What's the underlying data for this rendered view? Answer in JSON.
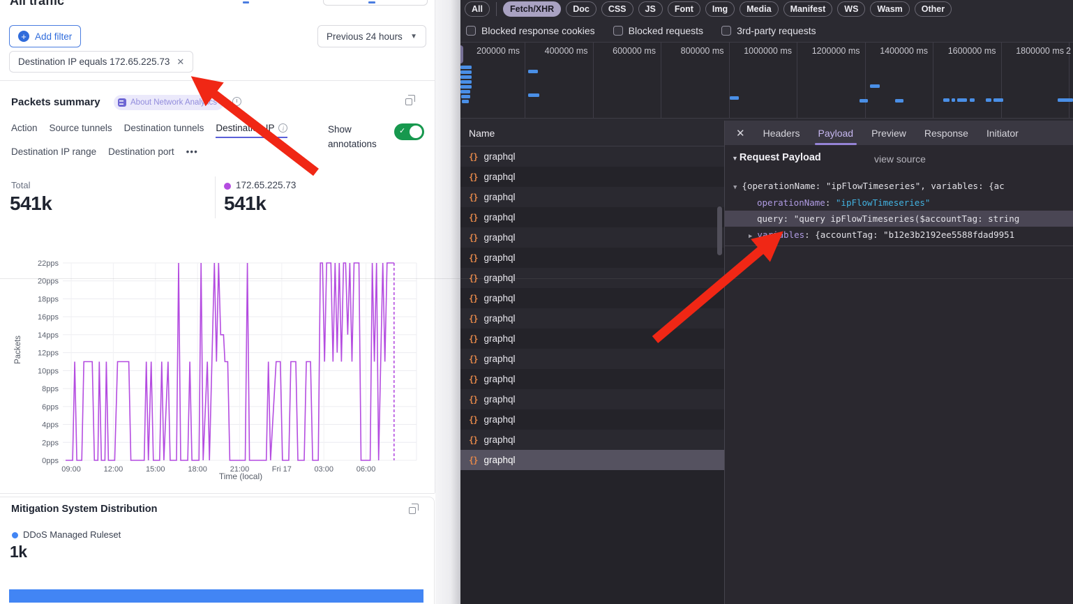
{
  "colors": {
    "series_purple": "#b44ce0",
    "mitigation_blue": "#4285f4",
    "toggle_green": "#17984e",
    "arrow_red": "#f02715",
    "waterfall_blue": "#4a8fe6",
    "accent_blue": "#2f6bdb",
    "devtools_pill_active_bg": "#a9a2c2",
    "payload_key_purple": "#af9be2",
    "payload_string_cyan": "#42b2e0",
    "active_tab_underline": "#5a5fd8"
  },
  "left": {
    "title": "All traffic",
    "add_filter": "Add filter",
    "time_range": "Previous 24 hours",
    "filter_chip": "Destination IP equals 172.65.225.73",
    "packets": {
      "title": "Packets summary",
      "badge": "About Network Analytics",
      "tabs_row1": [
        "Action",
        "Source tunnels",
        "Destination tunnels",
        "Destination IP"
      ],
      "active_tab": "Destination IP",
      "tabs_row2": [
        "Destination IP range",
        "Destination port"
      ],
      "more_glyph": "•••",
      "show_annotations": "Show annotations",
      "total_label": "Total",
      "total_value": "541k",
      "series_label": "172.65.225.73",
      "series_value": "541k"
    },
    "mitigation": {
      "title": "Mitigation System Distribution",
      "legend": "DDoS Managed Ruleset",
      "value": "1k"
    }
  },
  "devtools": {
    "filter_pills": [
      "All",
      "Fetch/XHR",
      "Doc",
      "CSS",
      "JS",
      "Font",
      "Img",
      "Media",
      "Manifest",
      "WS",
      "Wasm",
      "Other"
    ],
    "active_pill": "Fetch/XHR",
    "checkbox_labels": [
      "Blocked response cookies",
      "Blocked requests",
      "3rd-party requests"
    ],
    "timeline": {
      "tick_labels": [
        "200000 ms",
        "400000 ms",
        "600000 ms",
        "800000 ms",
        "1000000 ms",
        "1200000 ms",
        "1400000 ms",
        "1600000 ms",
        "1800000 ms"
      ],
      "partial_tick": "2",
      "bars": [
        [
          660,
          93,
          16
        ],
        [
          660,
          100,
          16
        ],
        [
          660,
          107,
          16
        ],
        [
          660,
          114,
          16
        ],
        [
          660,
          121,
          16
        ],
        [
          660,
          128,
          14
        ],
        [
          661,
          135,
          13
        ],
        [
          662,
          142,
          10
        ],
        [
          757,
          99,
          14
        ],
        [
          757,
          133,
          16
        ],
        [
          1046,
          137,
          13
        ],
        [
          1247,
          120,
          14
        ],
        [
          1232,
          141,
          12
        ],
        [
          1283,
          141,
          12
        ],
        [
          1352,
          140,
          9
        ],
        [
          1364,
          140,
          5
        ],
        [
          1372,
          140,
          14
        ],
        [
          1390,
          140,
          7
        ],
        [
          1413,
          140,
          8
        ],
        [
          1424,
          140,
          14
        ],
        [
          1516,
          140,
          22
        ]
      ]
    },
    "name_header": "Name",
    "request_icon": "{}",
    "requests": [
      "graphql",
      "graphql",
      "graphql",
      "graphql",
      "graphql",
      "graphql",
      "graphql",
      "graphql",
      "graphql",
      "graphql",
      "graphql",
      "graphql",
      "graphql",
      "graphql",
      "graphql",
      "graphql"
    ],
    "selected_request_index": 15,
    "panel": {
      "close_glyph": "✕",
      "tabs": [
        "Headers",
        "Payload",
        "Preview",
        "Response",
        "Initiator"
      ],
      "active_tab": "Payload",
      "section_title": "Request Payload",
      "view_source": "view source",
      "preview_line": "{operationName: \"ipFlowTimeseries\", variables: {ac",
      "rows": [
        {
          "key": "operationName",
          "value": "\"ipFlowTimeseries\"",
          "value_style": "cyan",
          "key_style": "purple"
        },
        {
          "key": "query",
          "value": "\"query ipFlowTimeseries($accountTag: string",
          "value_style": "plain",
          "key_style": "plain",
          "highlight": true
        },
        {
          "key": "variables",
          "value": "{accountTag: \"b12e3b2192ee5588fdad9951",
          "value_style": "plain",
          "key_style": "purple",
          "expandable": true
        }
      ]
    }
  },
  "chart_data": [
    {
      "type": "line",
      "title": "Packets summary",
      "ylabel": "Packets",
      "xlabel": "Time (local)",
      "ylim": [
        0,
        22
      ],
      "y_tick_step": 2,
      "y_unit": "pps",
      "x_domain": [
        8.4,
        33.6
      ],
      "grid": true,
      "dashed_end": true,
      "x_ticks": [
        {
          "label": "09:00",
          "t": 9
        },
        {
          "label": "12:00",
          "t": 12
        },
        {
          "label": "15:00",
          "t": 15
        },
        {
          "label": "18:00",
          "t": 18
        },
        {
          "label": "21:00",
          "t": 21
        },
        {
          "label": "Fri 17",
          "t": 24
        },
        {
          "label": "03:00",
          "t": 27
        },
        {
          "label": "06:00",
          "t": 30
        }
      ],
      "series": [
        {
          "name": "172.65.225.73",
          "total": "541k",
          "color": "#b44ce0",
          "points": [
            [
              8.6,
              0
            ],
            [
              9.1,
              0
            ],
            [
              9.25,
              11
            ],
            [
              9.4,
              0
            ],
            [
              9.75,
              0
            ],
            [
              9.9,
              11
            ],
            [
              10.5,
              11
            ],
            [
              10.65,
              0
            ],
            [
              10.9,
              0
            ],
            [
              11.0,
              11
            ],
            [
              11.15,
              0
            ],
            [
              11.4,
              0
            ],
            [
              11.5,
              11
            ],
            [
              11.65,
              0
            ],
            [
              12.1,
              0
            ],
            [
              12.3,
              11
            ],
            [
              13.1,
              11
            ],
            [
              13.25,
              0
            ],
            [
              14.2,
              0
            ],
            [
              14.35,
              11
            ],
            [
              14.5,
              0
            ],
            [
              14.7,
              11
            ],
            [
              14.85,
              0
            ],
            [
              15.3,
              0
            ],
            [
              15.45,
              11
            ],
            [
              15.6,
              0
            ],
            [
              15.9,
              11
            ],
            [
              16.05,
              0
            ],
            [
              16.5,
              0
            ],
            [
              16.65,
              22
            ],
            [
              16.8,
              0
            ],
            [
              17.3,
              0
            ],
            [
              17.45,
              11
            ],
            [
              17.6,
              0
            ],
            [
              18.1,
              0
            ],
            [
              18.25,
              22
            ],
            [
              18.4,
              0
            ],
            [
              18.7,
              11
            ],
            [
              18.85,
              0
            ],
            [
              19.2,
              22
            ],
            [
              19.35,
              11
            ],
            [
              19.5,
              22
            ],
            [
              19.65,
              14
            ],
            [
              19.85,
              14
            ],
            [
              19.95,
              11
            ],
            [
              20.15,
              11
            ],
            [
              20.3,
              0
            ],
            [
              21.4,
              0
            ],
            [
              21.55,
              22
            ],
            [
              21.7,
              0
            ],
            [
              22.9,
              0
            ],
            [
              23.05,
              11
            ],
            [
              23.2,
              0
            ],
            [
              23.6,
              11
            ],
            [
              23.9,
              11
            ],
            [
              24.05,
              0
            ],
            [
              24.5,
              0
            ],
            [
              24.65,
              11
            ],
            [
              25.0,
              11
            ],
            [
              25.15,
              0
            ],
            [
              25.6,
              0
            ],
            [
              25.75,
              11
            ],
            [
              26.05,
              11
            ],
            [
              26.2,
              0
            ],
            [
              26.6,
              0
            ],
            [
              26.75,
              22
            ],
            [
              26.9,
              22
            ],
            [
              27.05,
              11
            ],
            [
              27.2,
              22
            ],
            [
              27.5,
              22
            ],
            [
              27.65,
              11
            ],
            [
              27.8,
              22
            ],
            [
              27.95,
              12
            ],
            [
              28.1,
              22
            ],
            [
              28.25,
              11
            ],
            [
              28.4,
              22
            ],
            [
              28.55,
              22
            ],
            [
              28.7,
              14
            ],
            [
              28.85,
              22
            ],
            [
              29.0,
              11
            ],
            [
              29.15,
              22
            ],
            [
              29.5,
              22
            ],
            [
              29.65,
              0
            ],
            [
              30.3,
              0
            ],
            [
              30.45,
              22
            ],
            [
              30.6,
              11
            ],
            [
              30.75,
              22
            ],
            [
              30.9,
              0
            ],
            [
              31.2,
              22
            ],
            [
              31.35,
              11
            ],
            [
              31.5,
              22
            ],
            [
              31.8,
              22
            ],
            [
              32.0,
              22
            ]
          ]
        }
      ],
      "legend_position": "top"
    },
    {
      "type": "bar",
      "title": "Mitigation System Distribution",
      "categories": [
        "DDoS Managed Ruleset"
      ],
      "values": [
        1000
      ],
      "value_labels": [
        "1k"
      ],
      "color": "#4285f4",
      "orientation": "horizontal"
    }
  ]
}
